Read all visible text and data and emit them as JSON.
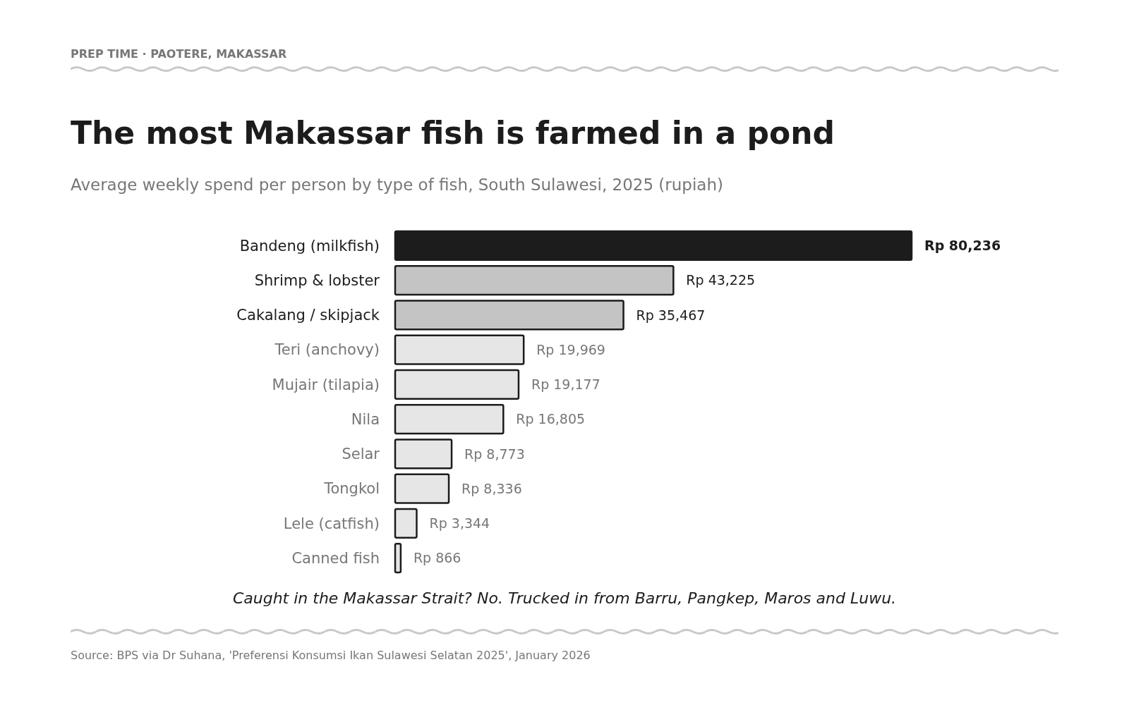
{
  "chart_data": {
    "type": "bar",
    "orientation": "horizontal",
    "title": "The most Makassar fish is farmed in a pond",
    "subtitle": "Average weekly spend per person by type of fish, South Sulawesi, 2025 (rupiah)",
    "annotations": [
      "PREP TIME · PAOTERE, MAKASSAR",
      "Caught in the Makassar Strait? No. Trucked in from Barru, Pangkep, Maros and Luwu.",
      "Source: BPS via Dr Suhana, 'Preferensi Konsumsi Ikan Sulawesi Selatan 2025', January 2026"
    ],
    "categories": [
      "Bandeng (milkfish)",
      "Shrimp & lobster",
      "Cakalang / skipjack",
      "Teri (anchovy)",
      "Mujair (tilapia)",
      "Nila",
      "Selar",
      "Tongkol",
      "Lele (catfish)",
      "Canned fish"
    ],
    "values": [
      80236,
      43225,
      35467,
      19969,
      19177,
      16805,
      8773,
      8336,
      3344,
      866
    ],
    "value_labels": [
      "Rp 80,236",
      "Rp 43,225",
      "Rp 35,467",
      "Rp 19,969",
      "Rp 19,177",
      "Rp 16,805",
      "Rp 8,773",
      "Rp 8,336",
      "Rp 3,344",
      "Rp 866"
    ],
    "colors": [
      "#1c1c1c",
      "#c4c4c4",
      "#c4c4c4",
      "#e6e6e6",
      "#e6e6e6",
      "#e6e6e6",
      "#e6e6e6",
      "#e6e6e6",
      "#e6e6e6",
      "#e6e6e6"
    ]
  }
}
